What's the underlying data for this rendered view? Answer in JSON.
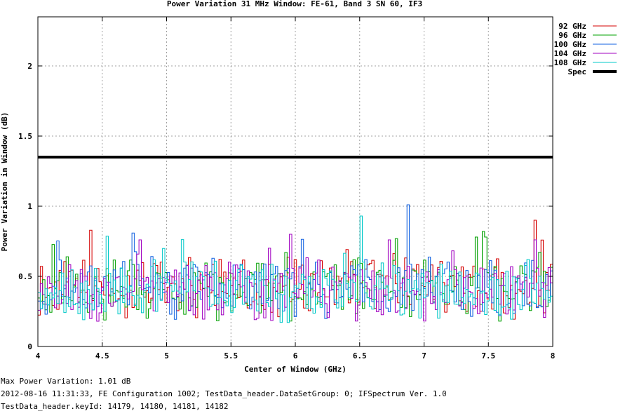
{
  "chart_data": {
    "type": "line",
    "title": "Power Variation 31 MHz Window: FE-61, Band 3 SN 60, IF3",
    "xlabel": "Center of Window (GHz)",
    "ylabel": "Power Variation in Window (dB)",
    "xlim": [
      4,
      8
    ],
    "ylim": [
      0,
      2.35
    ],
    "xticks": [
      "4",
      "4.5",
      "5",
      "5.5",
      "6",
      "6.5",
      "7",
      "7.5",
      "8"
    ],
    "yticks": [
      "0",
      "0.5",
      "1",
      "1.5",
      "2"
    ],
    "grid": true,
    "legend_position": "top-right",
    "series": [
      {
        "name": "92 GHz",
        "color": "#d40000",
        "sample_count": 220,
        "mean": 0.42,
        "min": 0.16,
        "max": 0.9,
        "peak_x": 7.86,
        "peak_y": 0.9
      },
      {
        "name": "96 GHz",
        "color": "#00a000",
        "sample_count": 220,
        "mean": 0.41,
        "min": 0.16,
        "max": 0.82,
        "peak_x": 7.45,
        "peak_y": 0.82
      },
      {
        "name": "100 GHz",
        "color": "#1060e0",
        "sample_count": 220,
        "mean": 0.43,
        "min": 0.16,
        "max": 1.01,
        "peak_x": 6.86,
        "peak_y": 1.01
      },
      {
        "name": "104 GHz",
        "color": "#a000c0",
        "sample_count": 220,
        "mean": 0.4,
        "min": 0.17,
        "max": 0.8,
        "peak_x": 5.95,
        "peak_y": 0.8
      },
      {
        "name": "108 GHz",
        "color": "#00c8c8",
        "sample_count": 220,
        "mean": 0.4,
        "min": 0.13,
        "max": 0.93,
        "peak_x": 6.51,
        "peak_y": 0.93
      }
    ],
    "spec": {
      "name": "Spec",
      "color": "#000000",
      "value": 1.35
    }
  },
  "footer": {
    "line1": "Max Power Variation: 1.01 dB",
    "line2": "2012-08-16 11:31:33, FE Configuration 1002; TestData_header.DataSetGroup: 0; IFSpectrum Ver. 1.0",
    "line3": "TestData_header.keyId: 14179, 14180, 14181, 14182"
  }
}
